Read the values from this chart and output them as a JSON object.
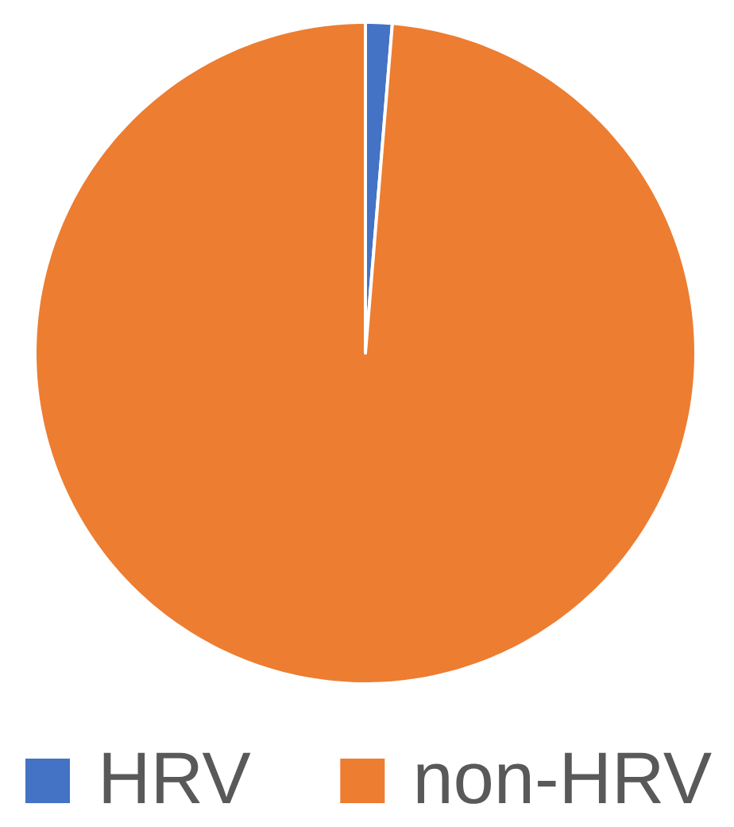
{
  "chart_data": {
    "type": "pie",
    "categories": [
      "HRV",
      "non-HRV"
    ],
    "values": [
      1.3,
      98.7
    ],
    "colors": [
      "#4472c4",
      "#ed7d31"
    ],
    "legend": "bottom"
  }
}
